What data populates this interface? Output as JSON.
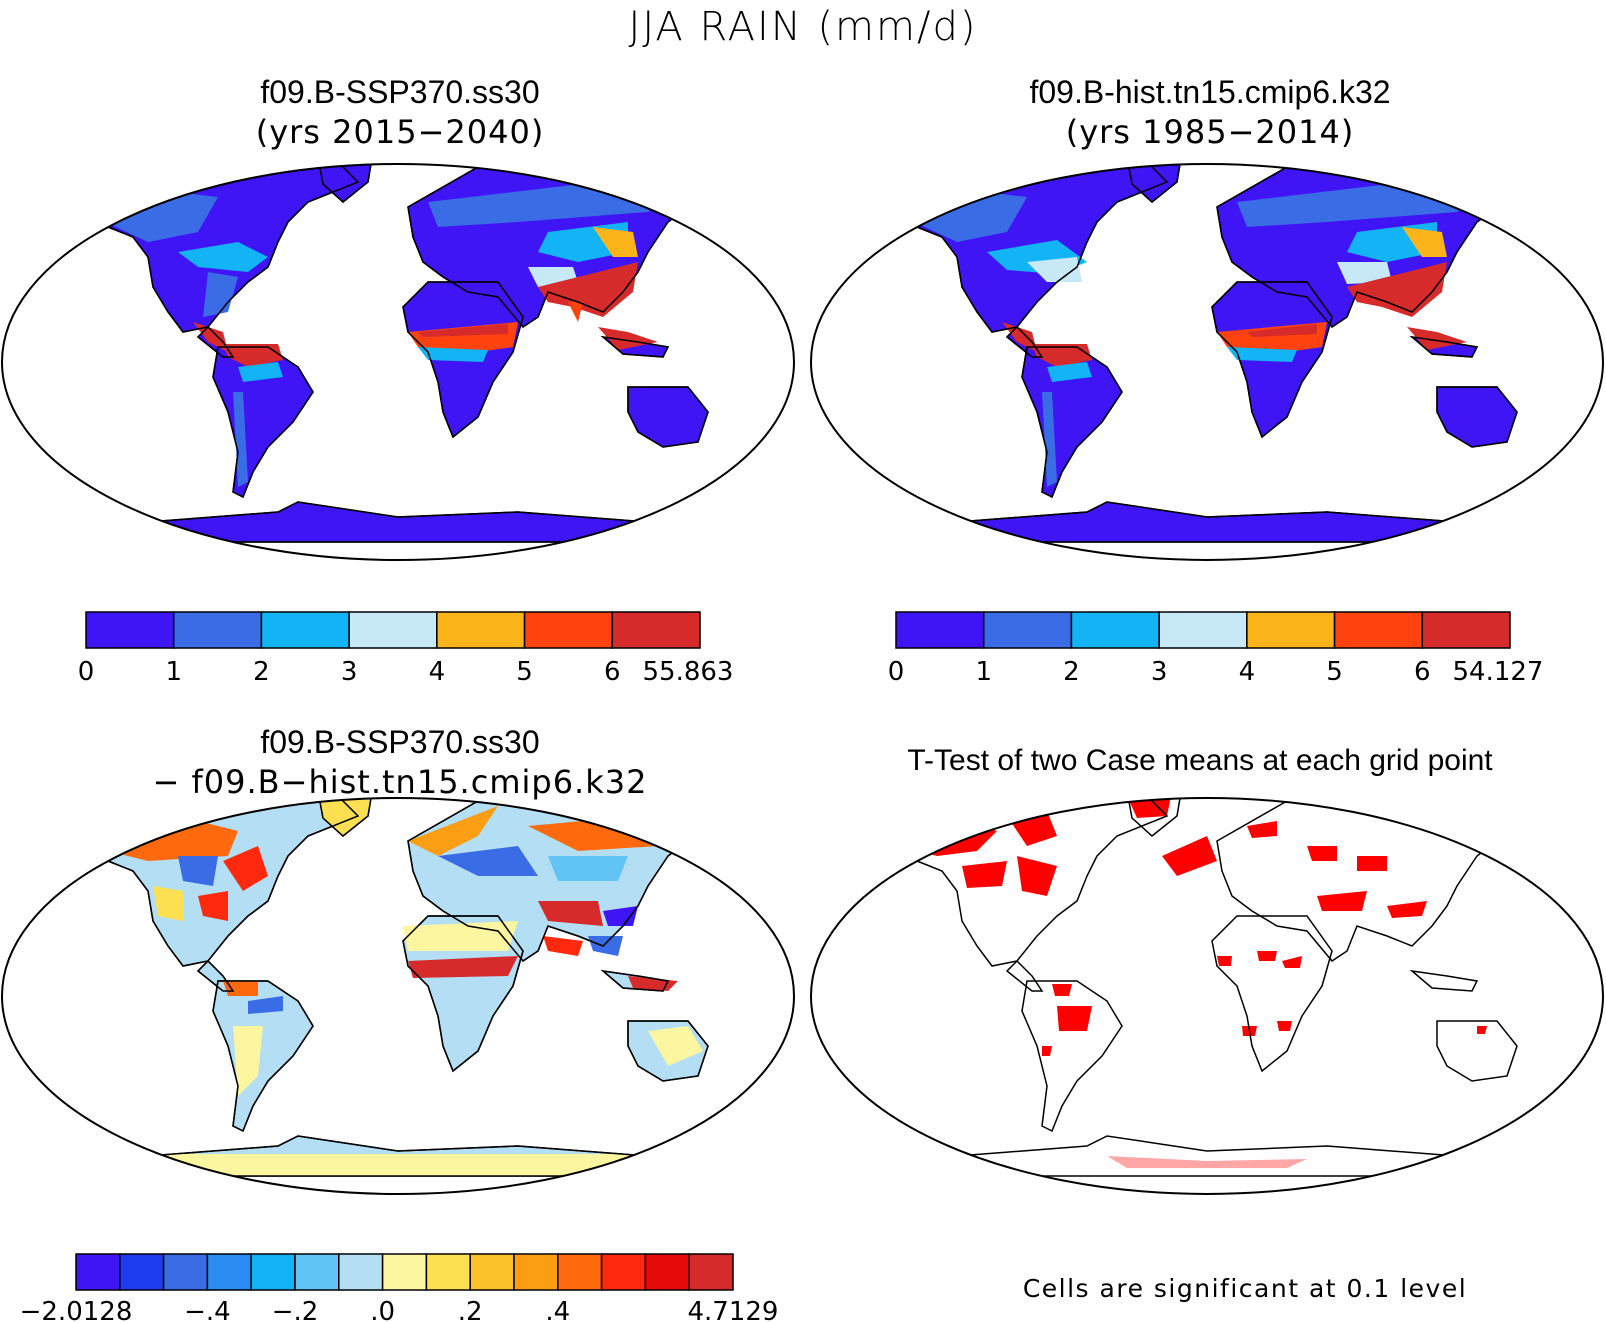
{
  "main_title": "JJA RAIN (mm/d)",
  "panels": [
    {
      "id": "ssp370",
      "title_line1": "f09.B-SSP370.ss30",
      "title_line2": "(yrs 2015−2040)",
      "colorbar": {
        "colors": [
          "#3f14f5",
          "#3a6ce6",
          "#12b4f5",
          "#c6e8f7",
          "#fbb51b",
          "#ff420e",
          "#d72a2a"
        ],
        "labels": [
          "0",
          "1",
          "2",
          "3",
          "4",
          "5",
          "6",
          "55.863"
        ]
      }
    },
    {
      "id": "hist",
      "title_line1": "f09.B-hist.tn15.cmip6.k32",
      "title_line2": "(yrs 1985−2014)",
      "colorbar": {
        "colors": [
          "#3f14f5",
          "#3a6ce6",
          "#12b4f5",
          "#c6e8f7",
          "#fbb51b",
          "#ff420e",
          "#d72a2a"
        ],
        "labels": [
          "0",
          "1",
          "2",
          "3",
          "4",
          "5",
          "6",
          "54.127"
        ]
      }
    },
    {
      "id": "diff",
      "title_line1": "f09.B-SSP370.ss30",
      "title_line2": "− f09.B−hist.tn15.cmip6.k32",
      "colorbar": {
        "colors": [
          "#3f14f5",
          "#1e3cf0",
          "#3a6ce6",
          "#2a8cf2",
          "#12b4f5",
          "#62c4f4",
          "#b4def4",
          "#fdf6a0",
          "#fde052",
          "#fbc22a",
          "#fb9e14",
          "#ff6a0e",
          "#ff2a0e",
          "#e60a0a",
          "#d72a2a"
        ],
        "labels": [
          "−2.0128",
          "−.4",
          "−.2",
          ".0",
          ".2",
          ".4",
          "4.7129"
        ]
      }
    },
    {
      "id": "ttest",
      "title_line1": "T-Test of two Case means at each grid point",
      "footnote": "Cells are significant at 0.1 level",
      "significant_color": "#ff0000"
    }
  ]
}
